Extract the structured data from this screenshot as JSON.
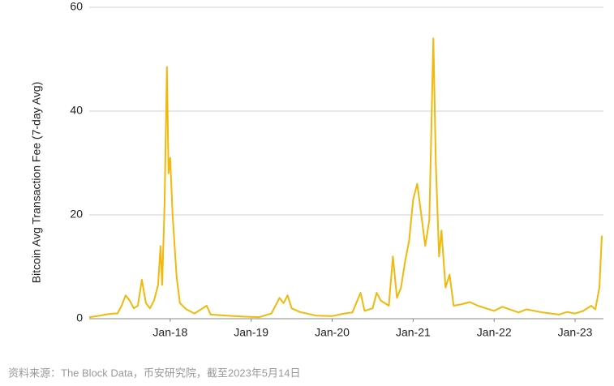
{
  "chart_data": {
    "type": "line",
    "y_label": "Bitcoin Avg Transaction Fee (7-day Avg)",
    "source": "资料来源：The Block Data，币安研究院，截至2023年5月14日",
    "x": [
      2017.0,
      2017.1,
      2017.2,
      2017.3,
      2017.35,
      2017.4,
      2017.45,
      2017.5,
      2017.55,
      2017.6,
      2017.65,
      2017.7,
      2017.75,
      2017.8,
      2017.85,
      2017.88,
      2017.9,
      2017.93,
      2017.96,
      2017.98,
      2018.0,
      2018.03,
      2018.08,
      2018.12,
      2018.2,
      2018.3,
      2018.45,
      2018.5,
      2018.7,
      2018.9,
      2019.1,
      2019.25,
      2019.35,
      2019.4,
      2019.45,
      2019.5,
      2019.6,
      2019.8,
      2020.0,
      2020.15,
      2020.25,
      2020.35,
      2020.4,
      2020.5,
      2020.55,
      2020.6,
      2020.7,
      2020.75,
      2020.8,
      2020.85,
      2020.9,
      2020.95,
      2021.0,
      2021.05,
      2021.1,
      2021.15,
      2021.2,
      2021.25,
      2021.28,
      2021.32,
      2021.35,
      2021.4,
      2021.45,
      2021.5,
      2021.6,
      2021.7,
      2021.8,
      2021.9,
      2022.0,
      2022.1,
      2022.3,
      2022.4,
      2022.6,
      2022.8,
      2022.9,
      2023.0,
      2023.1,
      2023.2,
      2023.25,
      2023.3,
      2023.33
    ],
    "series": [
      {
        "name": "Bitcoin Avg Transaction Fee",
        "color": "#f0b90b",
        "values": [
          0.3,
          0.5,
          0.8,
          1.0,
          1.0,
          2.5,
          4.5,
          3.5,
          2.0,
          2.5,
          7.5,
          3,
          2,
          3.5,
          6.5,
          14,
          6.5,
          22,
          48.5,
          28,
          31,
          20,
          8,
          3,
          1.8,
          1.0,
          2.5,
          0.8,
          0.6,
          0.4,
          0.3,
          1.0,
          4.0,
          3.0,
          4.5,
          2.0,
          1.3,
          0.6,
          0.5,
          1.0,
          1.2,
          5.0,
          1.5,
          2.0,
          5.0,
          3.5,
          2.5,
          12,
          4,
          6,
          11,
          15,
          23,
          26,
          20,
          14,
          19,
          54,
          30,
          12,
          17,
          6,
          8.5,
          2.5,
          2.8,
          3.2,
          2.5,
          2,
          1.5,
          2.3,
          1.2,
          1.8,
          1.2,
          0.8,
          1.3,
          1.0,
          1.5,
          2.5,
          1.8,
          6,
          16
        ]
      }
    ],
    "xlim": [
      2017.0,
      2023.33
    ],
    "xticks": [
      {
        "value": 2018,
        "label": "Jan-18"
      },
      {
        "value": 2019,
        "label": "Jan-19"
      },
      {
        "value": 2020,
        "label": "Jan-20"
      },
      {
        "value": 2021,
        "label": "Jan-21"
      },
      {
        "value": 2022,
        "label": "Jan-22"
      },
      {
        "value": 2023,
        "label": "Jan-23"
      }
    ],
    "ylim": [
      0,
      60
    ],
    "yticks": [
      0,
      20,
      40,
      60
    ],
    "grid": true
  }
}
